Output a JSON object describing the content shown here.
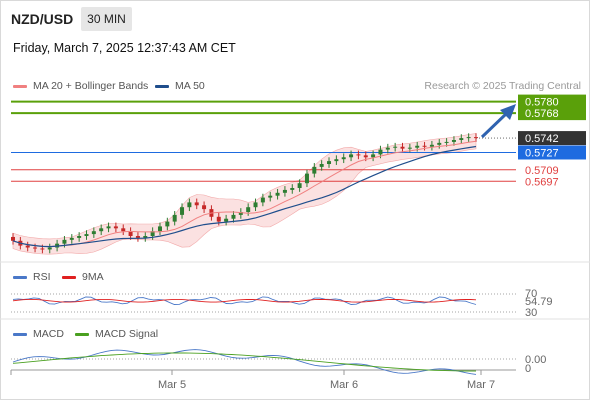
{
  "header": {
    "symbol": "NZD/USD",
    "timeframe": "30 MIN",
    "datetime": "Friday, March 7, 2025 12:37:43 AM CET"
  },
  "legend_main": [
    {
      "label": "MA 20 + Bollinger Bands",
      "color": "#f08080"
    },
    {
      "label": "MA 50",
      "color": "#1f4e8c"
    }
  ],
  "credit": "Research © 2025 Trading Central",
  "levels": {
    "target_1": "0.5780",
    "target_2": "0.5768",
    "last": "0.5742",
    "pivot": "0.5727",
    "support_1": "0.5709",
    "support_2": "0.5697"
  },
  "legend_rsi": [
    {
      "label": "RSI",
      "color": "#4a78c8"
    },
    {
      "label": "9MA",
      "color": "#e02020"
    }
  ],
  "rsi_scale": {
    "upper": "70",
    "value": "54.79",
    "lower": "30"
  },
  "legend_macd": [
    {
      "label": "MACD",
      "color": "#4a78c8"
    },
    {
      "label": "MACD Signal",
      "color": "#4aa020"
    }
  ],
  "macd_value": "0.00",
  "x_axis_labels": [
    "Mar 5",
    "Mar 6",
    "Mar 7"
  ],
  "colors": {
    "up": "#2e7d32",
    "down": "#c62828",
    "target": "#5aa00a",
    "pivot": "#1e6be0",
    "support": "#e04040",
    "arrow": "#2f63b0",
    "last_bg": "#333333"
  },
  "chart_data": {
    "type": "line",
    "instrument": "NZD/USD",
    "interval": "30 MIN",
    "y_range": [
      0.5615,
      0.579
    ],
    "x_labels": [
      "Mar 5",
      "Mar 6",
      "Mar 7"
    ],
    "horizontal_levels": [
      {
        "value": 0.578,
        "style": "target"
      },
      {
        "value": 0.5768,
        "style": "target"
      },
      {
        "value": 0.5742,
        "style": "last"
      },
      {
        "value": 0.5727,
        "style": "pivot"
      },
      {
        "value": 0.5709,
        "style": "support"
      },
      {
        "value": 0.5697,
        "style": "support"
      }
    ],
    "price_series": {
      "name": "NZD/USD",
      "approx_close": [
        0.5635,
        0.563,
        0.5628,
        0.5627,
        0.5626,
        0.5628,
        0.5632,
        0.5636,
        0.5638,
        0.564,
        0.5642,
        0.5645,
        0.5648,
        0.565,
        0.5648,
        0.5645,
        0.564,
        0.5638,
        0.564,
        0.5645,
        0.565,
        0.5655,
        0.5662,
        0.567,
        0.5675,
        0.5672,
        0.5668,
        0.566,
        0.5655,
        0.5658,
        0.5662,
        0.5665,
        0.567,
        0.5675,
        0.568,
        0.5682,
        0.5685,
        0.5688,
        0.569,
        0.5695,
        0.5705,
        0.5712,
        0.5715,
        0.5718,
        0.572,
        0.5722,
        0.5725,
        0.5724,
        0.5722,
        0.5725,
        0.573,
        0.5732,
        0.5733,
        0.5731,
        0.5732,
        0.5734,
        0.5733,
        0.5735,
        0.5737,
        0.5738,
        0.574,
        0.5742,
        0.5743,
        0.5742
      ]
    },
    "rsi": {
      "last": 54.79,
      "levels": [
        70,
        30
      ]
    },
    "macd": {
      "last": 0.0
    }
  }
}
